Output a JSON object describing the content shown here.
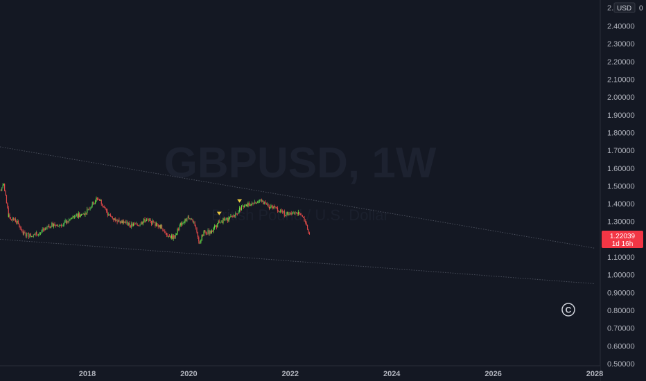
{
  "watermark": {
    "symbol": "GBPUSD, 1W",
    "description": "British Pound / U.S. Dollar"
  },
  "price_axis": {
    "currency_label": "USD",
    "currency_suffix": "0",
    "top_partial_label": "2.",
    "current_price": "1.22039",
    "countdown": "1d 16h"
  },
  "colors": {
    "background": "#141823",
    "up": "#4caf50",
    "up_bright": "#66dd44",
    "down": "#e04848",
    "current_price_bg": "#f23645",
    "trendline": "#4a4f5c",
    "marker": "#e8c640"
  },
  "logo": {
    "icon": "copyright-logo-icon",
    "glyph": "C"
  },
  "chart_data": {
    "type": "candlestick",
    "ylim": [
      0.5,
      2.5
    ],
    "y_ticks": [
      "0.50000",
      "0.60000",
      "0.70000",
      "0.80000",
      "0.90000",
      "1.00000",
      "1.10000",
      "1.20000",
      "1.30000",
      "1.40000",
      "1.50000",
      "1.60000",
      "1.70000",
      "1.80000",
      "1.90000",
      "2.00000",
      "2.10000",
      "2.20000",
      "2.30000",
      "2.40000"
    ],
    "x_ticks": [
      "2018",
      "2020",
      "2022",
      "2024",
      "2026",
      "2028"
    ],
    "xlim": [
      2016.2,
      2028.0
    ],
    "trendlines": [
      {
        "name": "upper",
        "points": [
          [
            2016.2,
            1.72
          ],
          [
            2028.0,
            1.15
          ]
        ]
      },
      {
        "name": "lower",
        "points": [
          [
            2016.2,
            1.2
          ],
          [
            2028.0,
            0.95
          ]
        ]
      }
    ],
    "markers": [
      {
        "t": 2020.6,
        "price": 1.32
      },
      {
        "t": 2021.0,
        "price": 1.39
      }
    ],
    "series": [
      {
        "points": [
          [
            2016.2,
            1.44
          ],
          [
            2016.35,
            1.5
          ],
          [
            2016.45,
            1.33
          ],
          [
            2016.6,
            1.3
          ],
          [
            2016.75,
            1.23
          ],
          [
            2016.9,
            1.22
          ],
          [
            2017.0,
            1.23
          ],
          [
            2017.15,
            1.25
          ],
          [
            2017.3,
            1.28
          ],
          [
            2017.45,
            1.28
          ],
          [
            2017.6,
            1.3
          ],
          [
            2017.75,
            1.33
          ],
          [
            2017.9,
            1.34
          ],
          [
            2018.0,
            1.36
          ],
          [
            2018.1,
            1.4
          ],
          [
            2018.2,
            1.43
          ],
          [
            2018.3,
            1.4
          ],
          [
            2018.4,
            1.34
          ],
          [
            2018.55,
            1.31
          ],
          [
            2018.7,
            1.3
          ],
          [
            2018.85,
            1.28
          ],
          [
            2019.0,
            1.28
          ],
          [
            2019.15,
            1.31
          ],
          [
            2019.3,
            1.29
          ],
          [
            2019.45,
            1.27
          ],
          [
            2019.6,
            1.22
          ],
          [
            2019.7,
            1.21
          ],
          [
            2019.85,
            1.29
          ],
          [
            2020.0,
            1.32
          ],
          [
            2020.1,
            1.3
          ],
          [
            2020.2,
            1.18
          ],
          [
            2020.3,
            1.24
          ],
          [
            2020.45,
            1.24
          ],
          [
            2020.6,
            1.3
          ],
          [
            2020.75,
            1.31
          ],
          [
            2020.9,
            1.33
          ],
          [
            2021.0,
            1.37
          ],
          [
            2021.15,
            1.39
          ],
          [
            2021.3,
            1.41
          ],
          [
            2021.45,
            1.41
          ],
          [
            2021.6,
            1.38
          ],
          [
            2021.75,
            1.37
          ],
          [
            2021.9,
            1.34
          ],
          [
            2022.0,
            1.35
          ],
          [
            2022.1,
            1.36
          ],
          [
            2022.2,
            1.33
          ],
          [
            2022.3,
            1.3
          ],
          [
            2022.38,
            1.22
          ]
        ]
      }
    ]
  }
}
